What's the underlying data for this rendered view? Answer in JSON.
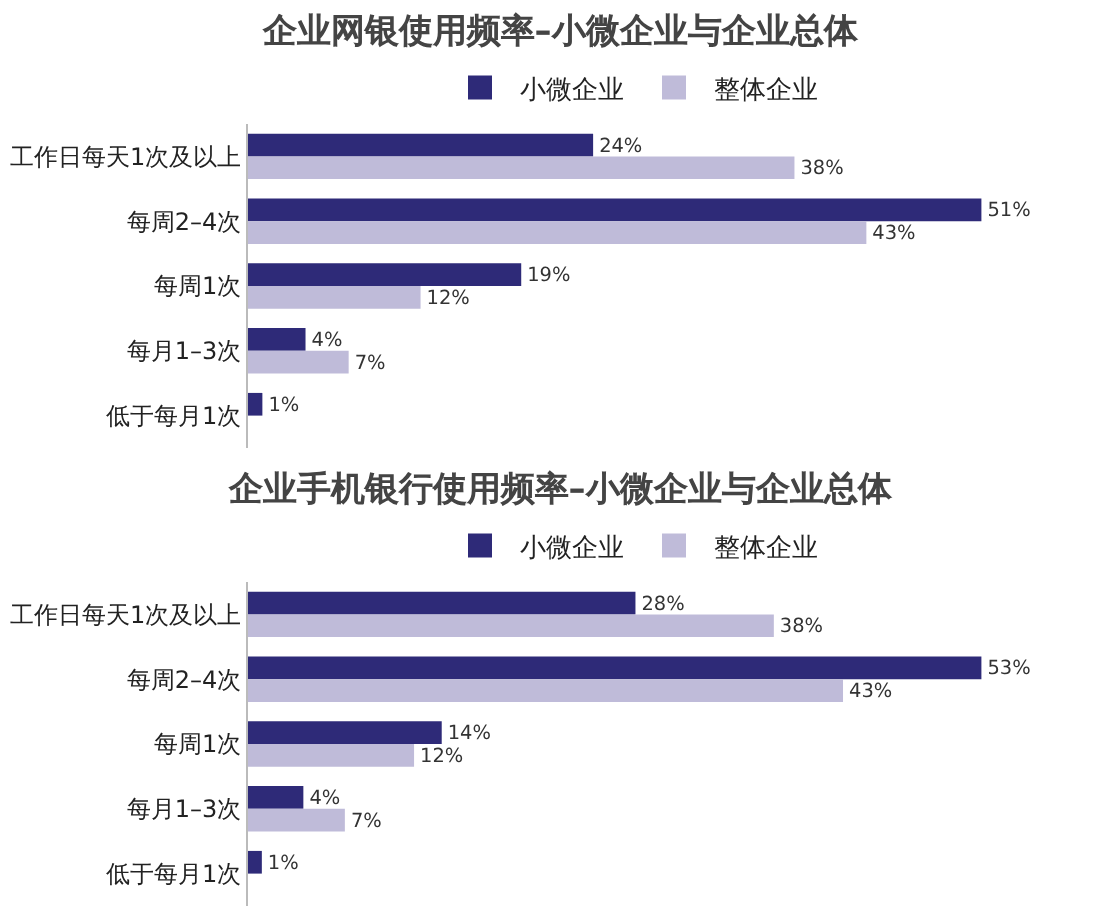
{
  "chart_data": [
    {
      "type": "bar",
      "orientation": "horizontal",
      "title": "企业网银使用频率–小微企业与企业总体",
      "categories": [
        "工作日每天1次及以上",
        "每周2–4次",
        "每周1次",
        "每月1–3次",
        "低于每月1次"
      ],
      "legend": "top",
      "tick_labels": "y",
      "series": [
        {
          "name": "小微企业",
          "color": "#2e2a78",
          "values": [
            24,
            51,
            19,
            4,
            1
          ],
          "value_labels": [
            "24%",
            "51%",
            "19%",
            "4%",
            "1%"
          ]
        },
        {
          "name": "整体企业",
          "color": "#bfbbd9",
          "values": [
            38,
            43,
            12,
            7,
            null
          ],
          "value_labels": [
            "38%",
            "43%",
            "12%",
            "7%",
            null
          ]
        }
      ]
    },
    {
      "type": "bar",
      "orientation": "horizontal",
      "title": "企业手机银行使用频率–小微企业与企业总体",
      "categories": [
        "工作日每天1次及以上",
        "每周2–4次",
        "每周1次",
        "每月1–3次",
        "低于每月1次"
      ],
      "legend": "top",
      "tick_labels": "y",
      "series": [
        {
          "name": "小微企业",
          "color": "#2e2a78",
          "values": [
            28,
            53,
            14,
            4,
            1
          ],
          "value_labels": [
            "28%",
            "53%",
            "14%",
            "4%",
            "1%"
          ]
        },
        {
          "name": "整体企业",
          "color": "#bfbbd9",
          "values": [
            38,
            43,
            12,
            7,
            null
          ],
          "value_labels": [
            "38%",
            "43%",
            "12%",
            "7%",
            null
          ]
        }
      ]
    }
  ]
}
